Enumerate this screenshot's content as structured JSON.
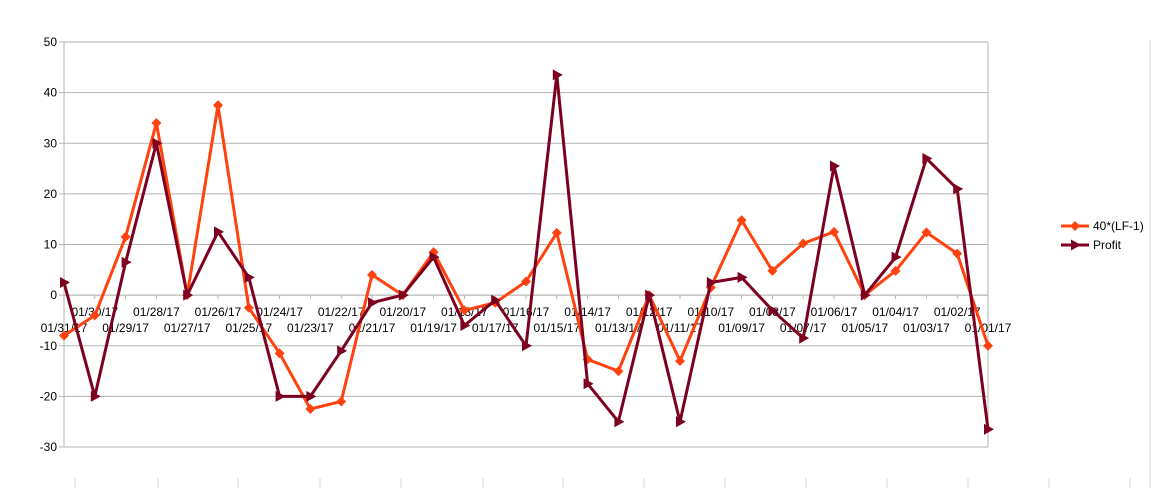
{
  "chart_data": {
    "type": "line",
    "title": "",
    "xlabel": "",
    "ylabel": "",
    "ylim": [
      -30,
      50
    ],
    "yticks": [
      50,
      40,
      30,
      20,
      10,
      0,
      -10,
      -20,
      -30
    ],
    "grid": true,
    "legend_position": "right",
    "categories": [
      "01/31/17",
      "01/30/17",
      "01/29/17",
      "01/28/17",
      "01/27/17",
      "01/26/17",
      "01/25/17",
      "01/24/17",
      "01/23/17",
      "01/22/17",
      "01/21/17",
      "01/20/17",
      "01/19/17",
      "01/18/17",
      "01/17/17",
      "01/16/17",
      "01/15/17",
      "01/14/17",
      "01/13/17",
      "01/12/17",
      "01/11/17",
      "01/10/17",
      "01/09/17",
      "01/08/17",
      "01/07/17",
      "01/06/17",
      "01/05/17",
      "01/04/17",
      "01/03/17",
      "01/02/17",
      "01/01/17"
    ],
    "series": [
      {
        "name": "40*(LF-1)",
        "color": "#ff420e",
        "marker": "diamond",
        "values": [
          -8,
          -4,
          11.5,
          34,
          0,
          37.5,
          -2.5,
          -11.5,
          -22.5,
          -21,
          4,
          0,
          8.5,
          -3,
          -1.5,
          2.7,
          12.3,
          -12.7,
          -15,
          0,
          -13,
          1.5,
          14.8,
          4.8,
          10.2,
          12.5,
          0,
          4.8,
          12.4,
          8.2,
          -10
        ]
      },
      {
        "name": "Profit",
        "color": "#7e0021",
        "marker": "triangle-right",
        "values": [
          2.5,
          -20,
          6.5,
          30,
          0,
          12.5,
          3.5,
          -20,
          -20,
          -11,
          -1.5,
          0,
          7.5,
          -6,
          -1,
          -10,
          43.5,
          -17.5,
          -25,
          0,
          -25,
          2.5,
          3.5,
          -3,
          -8.5,
          25.5,
          0,
          7.5,
          27,
          21,
          -26.5
        ]
      }
    ]
  }
}
